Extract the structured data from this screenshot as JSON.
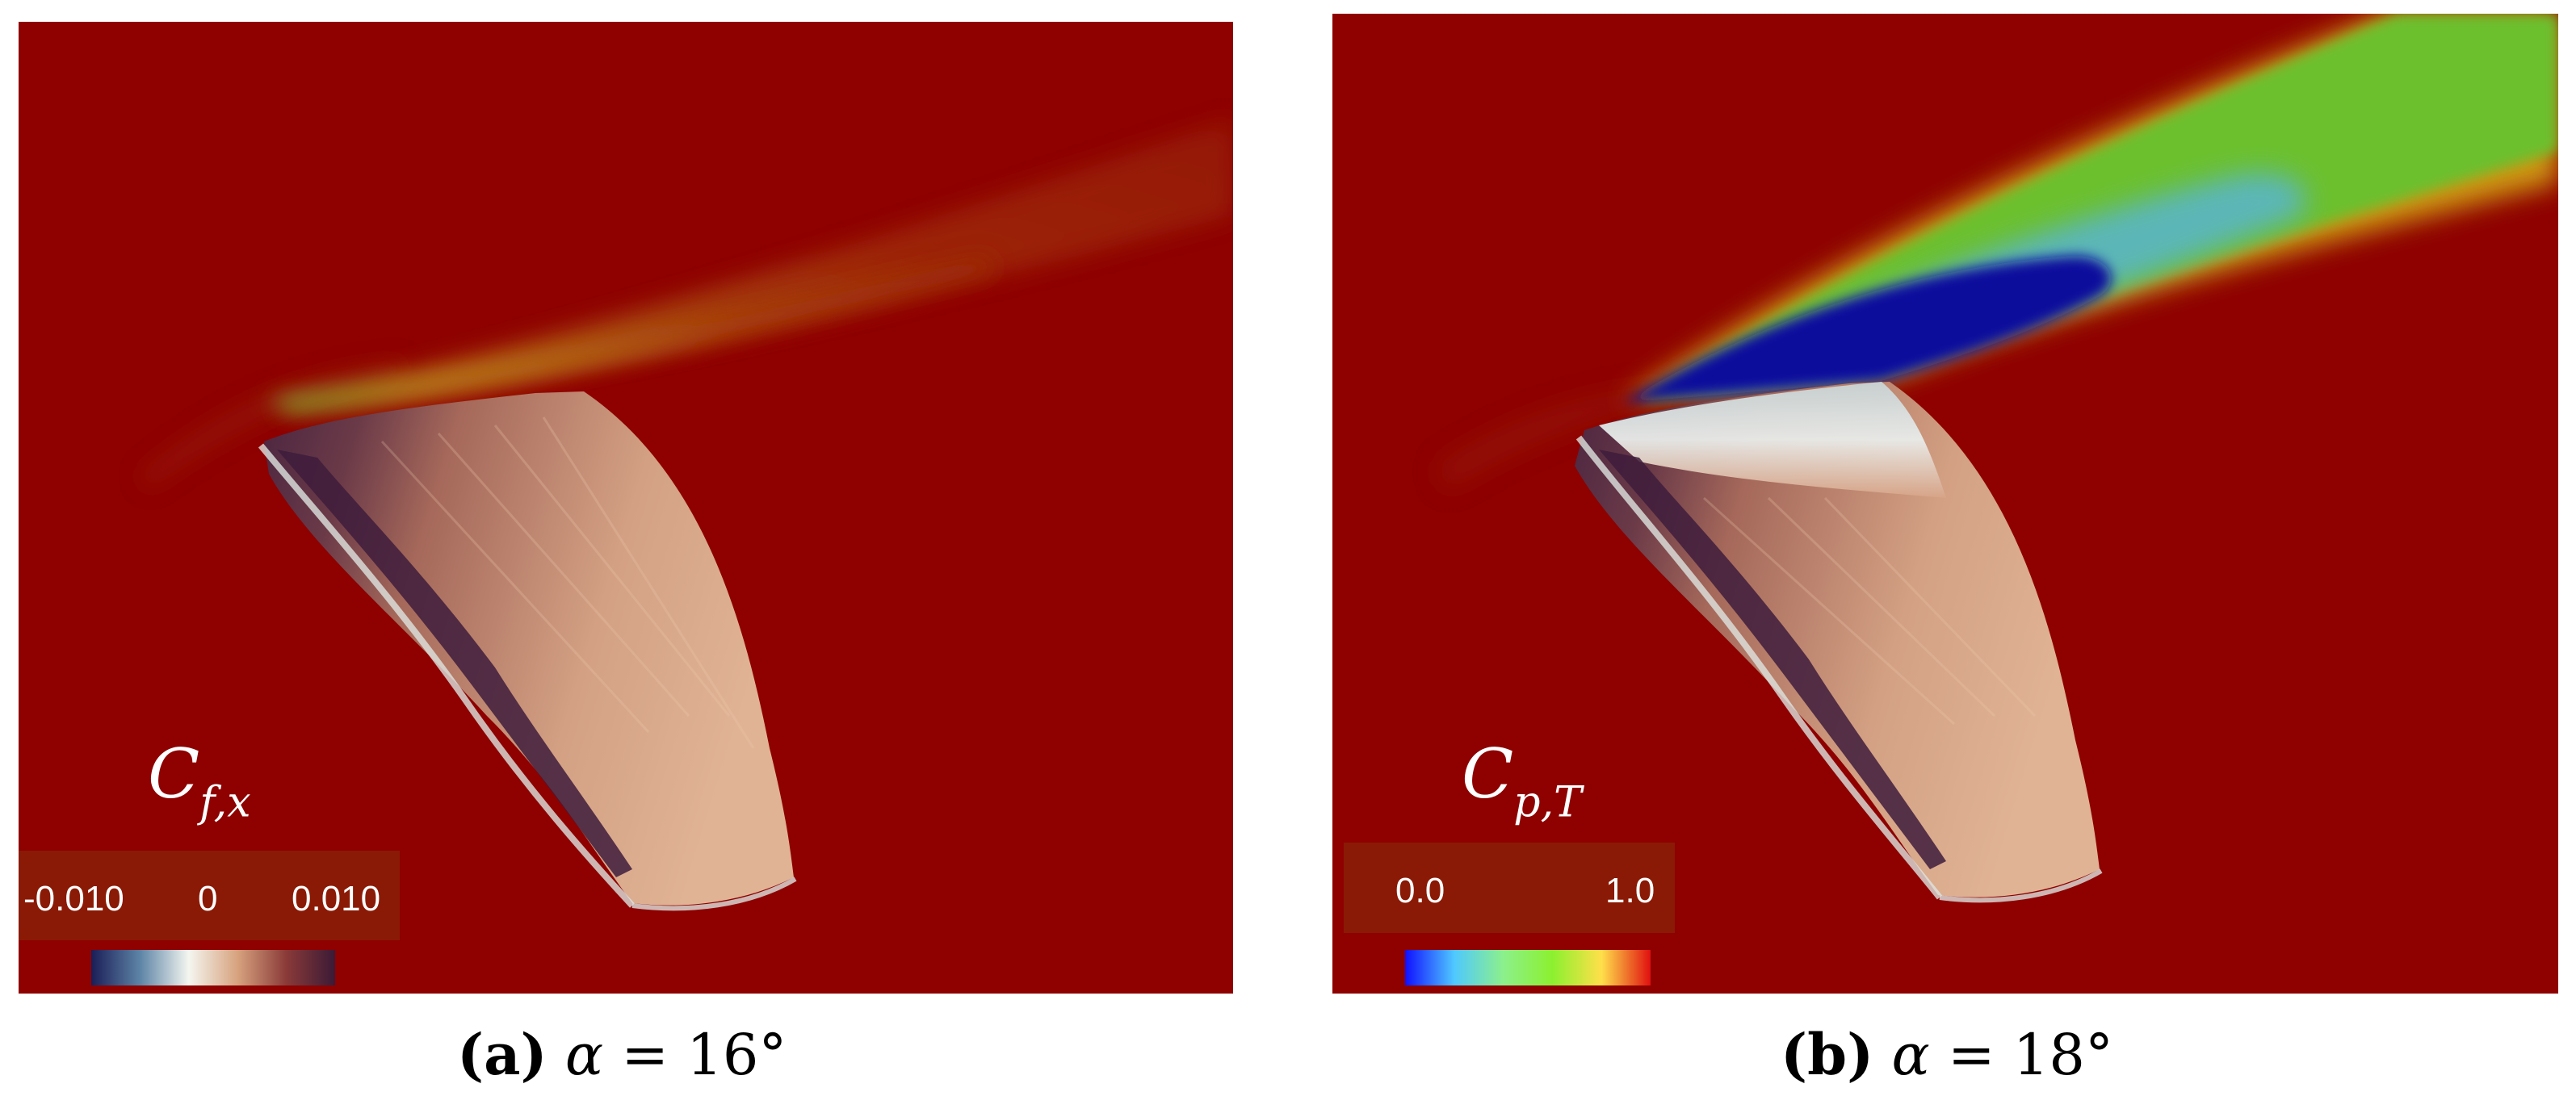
{
  "panel_a": {
    "variable": {
      "base": "C",
      "subscript": "f,x"
    },
    "colorbar": {
      "ticks": [
        "-0.010",
        "0",
        "0.010"
      ],
      "colors": [
        "#1b1d57",
        "#5d84a6",
        "#f4f6f0",
        "#d7a27e",
        "#8a3a38",
        "#3b1a36"
      ]
    },
    "caption": {
      "letter": "(a)",
      "symbol": "α",
      "relation": " = 16°"
    }
  },
  "panel_b": {
    "variable": {
      "base": "C",
      "subscript": "p,T"
    },
    "colorbar": {
      "ticks": [
        "0.0",
        "1.0"
      ],
      "colors": [
        "#1010ff",
        "#4fc8ff",
        "#8cf08c",
        "#8cf030",
        "#ffe04a",
        "#e01010"
      ]
    },
    "caption": {
      "letter": "(b)",
      "symbol": "α",
      "relation": " = 18°"
    }
  },
  "colors": {
    "background_field": "#8e0100",
    "legend_box": "#8a1a05"
  }
}
